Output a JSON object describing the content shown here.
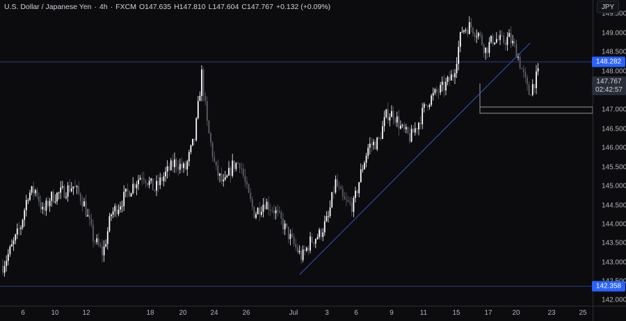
{
  "header": {
    "symbol": "U.S. Dollar / Japanese Yen",
    "interval": "4h",
    "source": "FXCM",
    "open": "O147.635",
    "high": "H147.810",
    "low": "L147.604",
    "close": "C147.767",
    "change": "+0.132 (+0.09%)"
  },
  "currency_button": "JPY",
  "price_axis": {
    "ticks": [
      "149.500",
      "149.000",
      "148.500",
      "148.000",
      "147.000",
      "146.500",
      "146.000",
      "145.500",
      "145.000",
      "144.500",
      "144.000",
      "143.500",
      "143.000",
      "142.500",
      "142.000"
    ]
  },
  "price_tags": {
    "resistance": "148.282",
    "support": "142.358",
    "current_price": "147.767",
    "countdown": "02:42:57"
  },
  "time_axis": {
    "ticks": [
      "6",
      "10",
      "12",
      "18",
      "20",
      "24",
      "26",
      "Jul",
      "3",
      "6",
      "9",
      "11",
      "15",
      "17",
      "20",
      "23",
      "25"
    ]
  },
  "colors": {
    "background": "#0c0c0e",
    "up_candle": "#ffffff",
    "down_candle": "#5d606b",
    "horizontal_line": "#2b3a8f",
    "trendline": "#3556c8",
    "tag_blue": "#2962ff"
  },
  "chart_data": {
    "type": "candlestick",
    "ylim": [
      142.0,
      149.65
    ],
    "horizontal_levels": [
      148.282,
      142.358
    ],
    "support_zone": [
      146.92,
      147.08
    ],
    "trendline": {
      "from": [
        140,
        142.7
      ],
      "to": [
        248,
        148.75
      ]
    },
    "candles": []
  }
}
